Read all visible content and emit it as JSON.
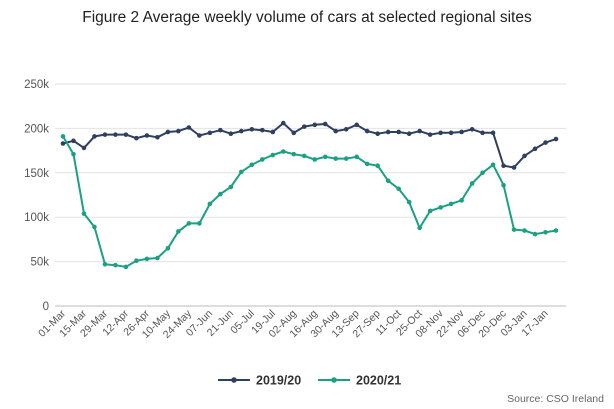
{
  "title": "Figure 2 Average weekly volume of cars at selected regional sites",
  "source": "Source: CSO Ireland",
  "chart_data": {
    "type": "line",
    "title": "Figure 2 Average weekly volume of cars at selected regional sites",
    "xlabel": "",
    "ylabel": "",
    "ylim": [
      0,
      250000
    ],
    "y_ticks": [
      0,
      50000,
      100000,
      150000,
      200000,
      250000
    ],
    "y_tick_labels": [
      "0",
      "50k",
      "100k",
      "150k",
      "200k",
      "250k"
    ],
    "grid": "horizontal",
    "legend_position": "bottom",
    "x_tick_labels": [
      "01-Mar",
      "15-Mar",
      "29-Mar",
      "12-Apr",
      "26-Apr",
      "10-May",
      "24-May",
      "07-Jun",
      "21-Jun",
      "05-Jul",
      "19-Jul",
      "02-Aug",
      "16-Aug",
      "30-Aug",
      "13-Sep",
      "27-Sep",
      "11-Oct",
      "25-Oct",
      "08-Nov",
      "22-Nov",
      "06-Dec",
      "20-Dec",
      "03-Jan",
      "17-Jan"
    ],
    "categories": [
      "01-Mar",
      "08-Mar",
      "15-Mar",
      "22-Mar",
      "29-Mar",
      "05-Apr",
      "12-Apr",
      "19-Apr",
      "26-Apr",
      "03-May",
      "10-May",
      "17-May",
      "24-May",
      "31-May",
      "07-Jun",
      "14-Jun",
      "21-Jun",
      "28-Jun",
      "05-Jul",
      "12-Jul",
      "19-Jul",
      "26-Jul",
      "02-Aug",
      "09-Aug",
      "16-Aug",
      "23-Aug",
      "30-Aug",
      "06-Sep",
      "13-Sep",
      "20-Sep",
      "27-Sep",
      "04-Oct",
      "11-Oct",
      "18-Oct",
      "25-Oct",
      "01-Nov",
      "08-Nov",
      "15-Nov",
      "22-Nov",
      "29-Nov",
      "06-Dec",
      "13-Dec",
      "20-Dec",
      "27-Dec",
      "03-Jan",
      "10-Jan",
      "17-Jan",
      "24-Jan"
    ],
    "series": [
      {
        "name": "2019/20",
        "color": "#2e3f5f",
        "values": [
          183000,
          186000,
          178000,
          191000,
          193000,
          193000,
          193000,
          189000,
          192000,
          190000,
          196000,
          197000,
          201000,
          192000,
          195000,
          198000,
          194000,
          197000,
          199000,
          198000,
          196000,
          206000,
          195000,
          202000,
          204000,
          205000,
          197000,
          199000,
          204000,
          197000,
          194000,
          196000,
          196000,
          194000,
          197000,
          193000,
          195000,
          195000,
          196000,
          199000,
          195000,
          195000,
          158000,
          156000,
          169000,
          177000,
          184000,
          188000
        ]
      },
      {
        "name": "2020/21",
        "color": "#1aa083",
        "values": [
          191000,
          171000,
          104000,
          89000,
          47000,
          46000,
          44000,
          51000,
          53000,
          54000,
          65000,
          84000,
          93000,
          93000,
          115000,
          126000,
          134000,
          151000,
          159000,
          165000,
          170000,
          174000,
          171000,
          169000,
          165000,
          168000,
          166000,
          166000,
          168000,
          160000,
          158000,
          141000,
          132000,
          117000,
          88000,
          107000,
          111000,
          115000,
          119000,
          138000,
          150000,
          159000,
          136000,
          86000,
          85000,
          81000,
          83000,
          85000
        ]
      }
    ]
  }
}
